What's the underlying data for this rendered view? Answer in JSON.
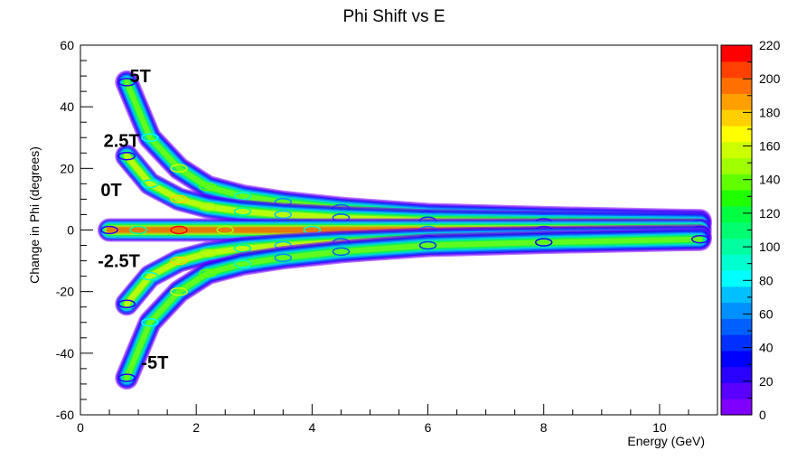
{
  "chart_data": {
    "type": "heatmap",
    "title": "Phi Shift vs E",
    "xlabel": "Energy (GeV)",
    "ylabel": "Change in Phi (degrees)",
    "xlim": [
      0,
      11
    ],
    "ylim": [
      -60,
      60
    ],
    "x_ticks": [
      0,
      2,
      4,
      6,
      8,
      10
    ],
    "y_ticks": [
      -60,
      -40,
      -20,
      0,
      20,
      40,
      60
    ],
    "z_range": [
      0,
      220
    ],
    "z_ticks": [
      0,
      20,
      40,
      60,
      80,
      100,
      120,
      140,
      160,
      180,
      200,
      220
    ],
    "palette": [
      "#8000ff",
      "#5a00ff",
      "#2a00ff",
      "#0000ff",
      "#0030ff",
      "#0060ff",
      "#0090ff",
      "#00c0ff",
      "#00ffff",
      "#00ffd0",
      "#00ffa0",
      "#00ff70",
      "#00ff40",
      "#20ff00",
      "#60ff00",
      "#a0ff00",
      "#ccff00",
      "#ffff00",
      "#ffd000",
      "#ffa000",
      "#ff7000",
      "#ff4000",
      "#ff0000"
    ],
    "grid": false,
    "legend": "color-bar-right",
    "annotations": [
      {
        "text": "5T",
        "x": 0.85,
        "y": 48
      },
      {
        "text": "2.5T",
        "x": 0.4,
        "y": 27
      },
      {
        "text": "0T",
        "x": 0.35,
        "y": 11
      },
      {
        "text": "-2.5T",
        "x": 0.3,
        "y": -12
      },
      {
        "text": "-5T",
        "x": 1.05,
        "y": -45
      }
    ],
    "series": [
      {
        "name": "5T",
        "x": [
          0.8,
          1.2,
          1.7,
          2.2,
          2.8,
          3.5,
          4.5,
          6.0,
          8.0,
          10.7
        ],
        "y": [
          48,
          30,
          20,
          14,
          11,
          9,
          7,
          5,
          4,
          3
        ],
        "z": [
          20,
          80,
          160,
          140,
          90,
          60,
          50,
          40,
          30,
          20
        ]
      },
      {
        "name": "2.5T",
        "x": [
          0.8,
          1.2,
          1.7,
          2.2,
          2.8,
          3.5,
          4.5,
          6.0,
          8.0,
          10.7
        ],
        "y": [
          24,
          15,
          10,
          7.5,
          6,
          5,
          4,
          3,
          2.5,
          2
        ],
        "z": [
          20,
          90,
          180,
          150,
          100,
          70,
          55,
          45,
          35,
          25
        ]
      },
      {
        "name": "0T",
        "x": [
          0.5,
          1.0,
          1.7,
          2.5,
          4.0,
          6.0,
          8.0,
          10.7
        ],
        "y": [
          0,
          0,
          0,
          0,
          0,
          0,
          0,
          0
        ],
        "z": [
          20,
          100,
          220,
          150,
          90,
          60,
          40,
          25
        ]
      },
      {
        "name": "-2.5T",
        "x": [
          0.8,
          1.2,
          1.7,
          2.2,
          2.8,
          3.5,
          4.5,
          6.0,
          8.0,
          10.7
        ],
        "y": [
          -24,
          -15,
          -10,
          -7.5,
          -6,
          -5,
          -4,
          -3,
          -2.5,
          -2
        ],
        "z": [
          20,
          90,
          180,
          150,
          100,
          70,
          55,
          45,
          35,
          25
        ]
      },
      {
        "name": "-5T",
        "x": [
          0.8,
          1.2,
          1.7,
          2.2,
          2.8,
          3.5,
          4.5,
          6.0,
          8.0,
          10.7
        ],
        "y": [
          -48,
          -30,
          -20,
          -14,
          -11,
          -9,
          -7,
          -5,
          -4,
          -3
        ],
        "z": [
          20,
          80,
          160,
          140,
          90,
          60,
          50,
          40,
          30,
          20
        ]
      }
    ]
  }
}
